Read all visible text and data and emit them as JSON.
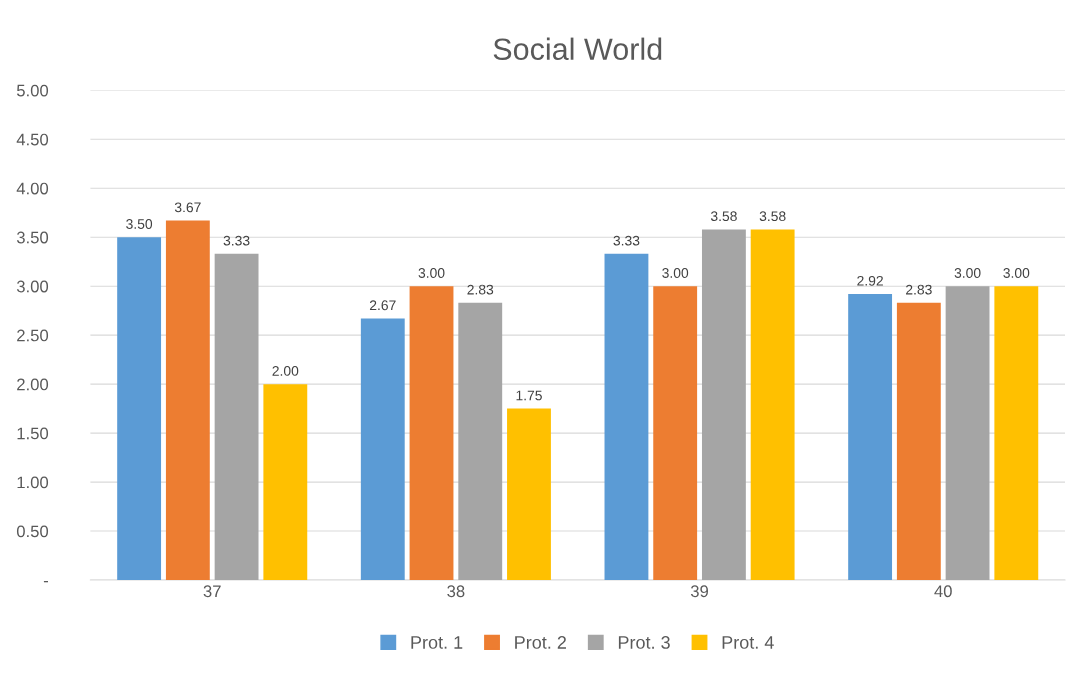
{
  "chart_data": {
    "type": "bar",
    "title": "Social World",
    "categories": [
      "37",
      "38",
      "39",
      "40"
    ],
    "series": [
      {
        "name": "Prot. 1",
        "color": "#5b9bd5",
        "values": [
          3.5,
          2.67,
          3.33,
          2.92
        ],
        "value_labels": [
          "3.50",
          "2.67",
          "3.33",
          "2.92"
        ]
      },
      {
        "name": "Prot. 2",
        "color": "#ed7d31",
        "values": [
          3.67,
          3.0,
          3.0,
          2.83
        ],
        "value_labels": [
          "3.67",
          "3.00",
          "3.00",
          "2.83"
        ]
      },
      {
        "name": "Prot. 3",
        "color": "#a5a5a5",
        "values": [
          3.33,
          2.83,
          3.58,
          3.0
        ],
        "value_labels": [
          "3.33",
          "2.83",
          "3.58",
          "3.00"
        ]
      },
      {
        "name": "Prot. 4",
        "color": "#ffc000",
        "values": [
          2.0,
          1.75,
          3.58,
          3.0
        ],
        "value_labels": [
          "2.00",
          "1.75",
          "3.58",
          "3.00"
        ]
      }
    ],
    "ylim": [
      0,
      5
    ],
    "yticks": [
      {
        "value": 0,
        "label": "-"
      },
      {
        "value": 0.5,
        "label": "0.50"
      },
      {
        "value": 1,
        "label": "1.00"
      },
      {
        "value": 1.5,
        "label": "1.50"
      },
      {
        "value": 2,
        "label": "2.00"
      },
      {
        "value": 2.5,
        "label": "2.50"
      },
      {
        "value": 3,
        "label": "3.00"
      },
      {
        "value": 3.5,
        "label": "3.50"
      },
      {
        "value": 4,
        "label": "4.00"
      },
      {
        "value": 4.5,
        "label": "4.50"
      },
      {
        "value": 5,
        "label": "5.00"
      }
    ],
    "grid": "y",
    "legend": "bottom"
  }
}
